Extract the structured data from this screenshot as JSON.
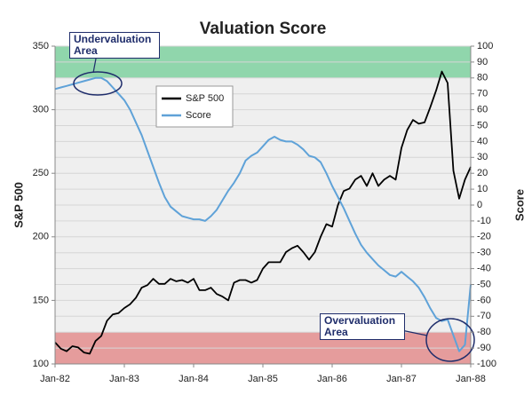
{
  "chart_data": {
    "type": "line",
    "title": "Valuation Score",
    "ylabel": "S&P 500",
    "y2label": "Score",
    "x": [
      "1982-01",
      "1982-02",
      "1982-03",
      "1982-04",
      "1982-05",
      "1982-06",
      "1982-07",
      "1982-08",
      "1982-09",
      "1982-10",
      "1982-11",
      "1982-12",
      "1983-01",
      "1983-02",
      "1983-03",
      "1983-04",
      "1983-05",
      "1983-06",
      "1983-07",
      "1983-08",
      "1983-09",
      "1983-10",
      "1983-11",
      "1983-12",
      "1984-01",
      "1984-02",
      "1984-03",
      "1984-04",
      "1984-05",
      "1984-06",
      "1984-07",
      "1984-08",
      "1984-09",
      "1984-10",
      "1984-11",
      "1984-12",
      "1985-01",
      "1985-02",
      "1985-03",
      "1985-04",
      "1985-05",
      "1985-06",
      "1985-07",
      "1985-08",
      "1985-09",
      "1985-10",
      "1985-11",
      "1985-12",
      "1986-01",
      "1986-02",
      "1986-03",
      "1986-04",
      "1986-05",
      "1986-06",
      "1986-07",
      "1986-08",
      "1986-09",
      "1986-10",
      "1986-11",
      "1986-12",
      "1987-01",
      "1987-02",
      "1987-03",
      "1987-04",
      "1987-05",
      "1987-06",
      "1987-07",
      "1987-08",
      "1987-09",
      "1987-10",
      "1987-11",
      "1987-12",
      "1988-01"
    ],
    "series": [
      {
        "name": "S&P 500",
        "color": "#000000",
        "values": [
          117,
          112,
          110,
          114,
          113,
          109,
          108,
          118,
          122,
          134,
          139,
          140,
          144,
          147,
          152,
          160,
          162,
          167,
          163,
          163,
          167,
          165,
          166,
          164,
          167,
          158,
          158,
          160,
          155,
          153,
          150,
          164,
          166,
          166,
          164,
          166,
          175,
          180,
          180,
          180,
          188,
          191,
          193,
          188,
          182,
          188,
          200,
          210,
          208,
          225,
          236,
          238,
          245,
          248,
          240,
          250,
          240,
          245,
          248,
          245,
          270,
          284,
          292,
          289,
          290,
          302,
          315,
          330,
          321,
          252,
          230,
          245,
          255
        ]
      },
      {
        "name": "Score",
        "color": "#5fa2d8",
        "axis": "y2",
        "values": [
          73,
          74,
          75,
          76,
          77,
          78,
          79,
          80,
          80,
          78,
          74,
          70,
          66,
          60,
          52,
          44,
          34,
          24,
          14,
          5,
          -1,
          -4,
          -7,
          -8,
          -9,
          -9,
          -10,
          -7,
          -3,
          3,
          9,
          14,
          20,
          28,
          31,
          33,
          37,
          41,
          43,
          41,
          40,
          40,
          38,
          35,
          31,
          30,
          27,
          20,
          12,
          5,
          -2,
          -10,
          -18,
          -25,
          -30,
          -34,
          -38,
          -41,
          -44,
          -45,
          -42,
          -45,
          -48,
          -52,
          -58,
          -65,
          -71,
          -73,
          -72,
          -82,
          -92,
          -88,
          -50
        ]
      }
    ],
    "xlim": [
      "1982-01",
      "1988-01"
    ],
    "xticks": [
      {
        "value": "1982-01",
        "label": "Jan-82"
      },
      {
        "value": "1983-01",
        "label": "Jan-83"
      },
      {
        "value": "1984-01",
        "label": "Jan-84"
      },
      {
        "value": "1985-01",
        "label": "Jan-85"
      },
      {
        "value": "1986-01",
        "label": "Jan-86"
      },
      {
        "value": "1987-01",
        "label": "Jan-87"
      },
      {
        "value": "1988-01",
        "label": "Jan-88"
      }
    ],
    "ylim": [
      100,
      350
    ],
    "yticks": [
      100,
      150,
      200,
      250,
      300,
      350
    ],
    "y2lim": [
      -100,
      100
    ],
    "y2ticks": [
      -100,
      -90,
      -80,
      -70,
      -60,
      -50,
      -40,
      -30,
      -20,
      -10,
      0,
      10,
      20,
      30,
      40,
      50,
      60,
      70,
      80,
      90,
      100
    ],
    "grid": true,
    "legend": "upper left",
    "bands": [
      {
        "from": 80,
        "to": 100,
        "color": "#7fd1a0"
      },
      {
        "from": -100,
        "to": -80,
        "color": "#e38d8d"
      }
    ],
    "annotations": [
      {
        "text": "Undervaluation Area"
      },
      {
        "text": "Overvaluation Area"
      }
    ]
  }
}
